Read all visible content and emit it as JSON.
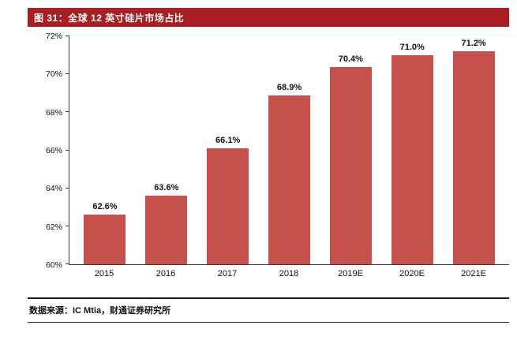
{
  "header": {
    "title": "图 31：全球 12 英寸硅片市场占比",
    "bg_color": "#A81E22",
    "text_color": "#FFFFFF"
  },
  "footer": {
    "source": "数据来源：IC Mtia，财通证券研究所"
  },
  "chart_data": {
    "type": "bar",
    "title": "全球 12 英寸硅片市场占比",
    "categories": [
      "2015",
      "2016",
      "2017",
      "2018",
      "2019E",
      "2020E",
      "2021E"
    ],
    "values": [
      62.6,
      63.6,
      66.1,
      68.9,
      70.4,
      71.0,
      71.2
    ],
    "value_labels": [
      "62.6%",
      "63.6%",
      "66.1%",
      "68.9%",
      "70.4%",
      "71.0%",
      "71.2%"
    ],
    "xlabel": "",
    "ylabel": "",
    "ylim": [
      60,
      72
    ],
    "yticks": [
      {
        "value": 60,
        "label": "60%"
      },
      {
        "value": 62,
        "label": "62%"
      },
      {
        "value": 64,
        "label": "64%"
      },
      {
        "value": 66,
        "label": "66%"
      },
      {
        "value": 68,
        "label": "68%"
      },
      {
        "value": 70,
        "label": "70%"
      },
      {
        "value": 72,
        "label": "72%"
      }
    ],
    "bar_color": "#C4514C",
    "grid": false,
    "legend_position": "none"
  }
}
